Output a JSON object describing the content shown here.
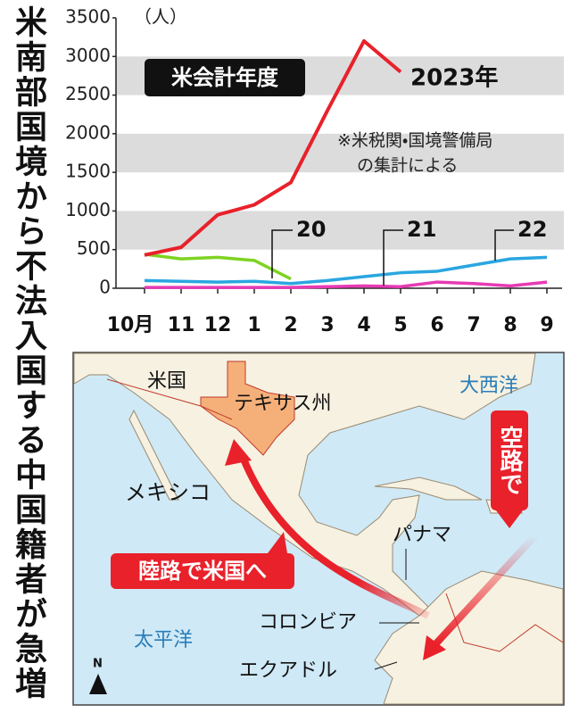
{
  "headline": "米南部国境から不法入国する中国籍者が急増",
  "chart_data": {
    "type": "line",
    "unit": "（人）",
    "badge": "米会計年度",
    "note": [
      "※米税関・国境警備局",
      "の集計による"
    ],
    "categories": [
      "10月",
      "11",
      "12",
      "1",
      "2",
      "3",
      "4",
      "5",
      "6",
      "7",
      "8",
      "9"
    ],
    "series": [
      {
        "name": "2023年",
        "color": "#e8212b",
        "values": [
          430,
          530,
          950,
          1080,
          1370,
          2300,
          3200,
          2800,
          null,
          null,
          null,
          null
        ]
      },
      {
        "name": "20",
        "color": "#7ed321",
        "values": [
          440,
          380,
          400,
          360,
          120,
          null,
          null,
          null,
          null,
          null,
          null,
          null
        ]
      },
      {
        "name": "21",
        "color": "#e83ab4",
        "values": [
          10,
          10,
          10,
          10,
          10,
          20,
          30,
          20,
          80,
          60,
          30,
          80
        ]
      },
      {
        "name": "22",
        "color": "#2aa6e0",
        "values": [
          100,
          90,
          80,
          90,
          60,
          100,
          150,
          200,
          220,
          300,
          380,
          400
        ]
      }
    ],
    "ylim": [
      0,
      3500
    ],
    "yticks": [
      0,
      500,
      1000,
      1500,
      2000,
      2500,
      3000,
      3500
    ],
    "grid": "bands"
  },
  "map": {
    "labels": {
      "usa": "米国",
      "texas": "テキサス州",
      "atlantic": "大西洋",
      "mexico": "メキシコ",
      "panama": "パナマ",
      "colombia": "コロンビア",
      "ecuador": "エクアドル",
      "pacific": "太平洋",
      "north": "N"
    },
    "land_route": "陸路で米国へ",
    "air_route": "空路で"
  }
}
